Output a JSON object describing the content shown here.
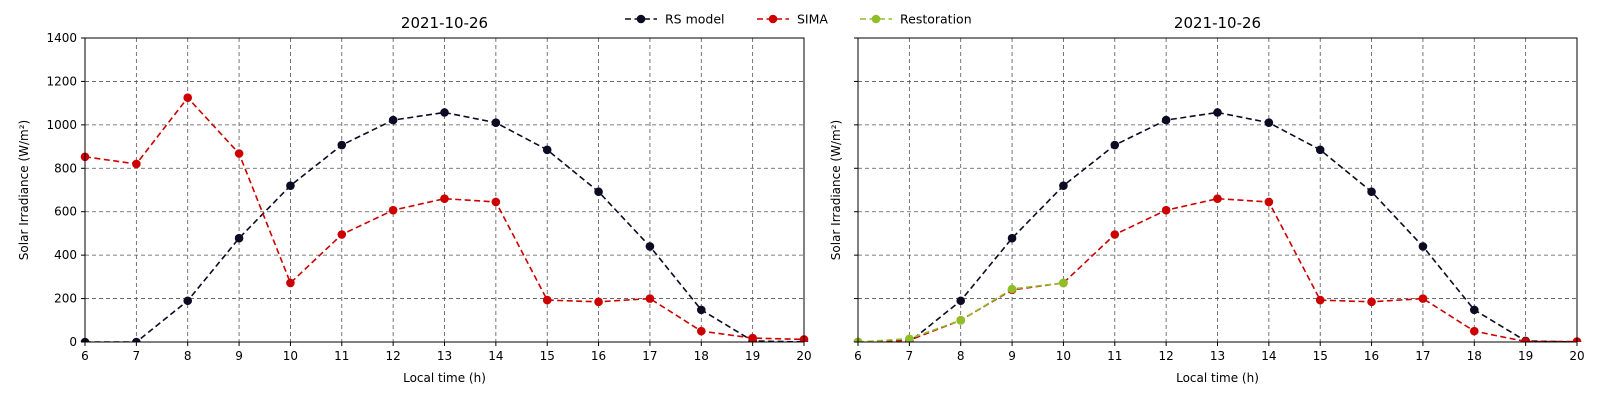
{
  "legend": {
    "placement": "top-center",
    "entries": [
      {
        "label": "RS model",
        "color": "#0b0b24"
      },
      {
        "label": "SIMA",
        "color": "#cc0000"
      },
      {
        "label": "Restoration",
        "color": "#8fbf26"
      }
    ]
  },
  "chart_data": [
    {
      "type": "line",
      "title": "2021-10-26",
      "xlabel": "Local time (h)",
      "ylabel": "Solar Irradiance (W/m²)",
      "xlim": [
        6,
        20
      ],
      "ylim": [
        0,
        1400
      ],
      "xticks": [
        6,
        7,
        8,
        9,
        10,
        11,
        12,
        13,
        14,
        15,
        16,
        17,
        18,
        19,
        20
      ],
      "yticks": [
        0,
        200,
        400,
        600,
        800,
        1000,
        1200,
        1400
      ],
      "grid": true,
      "series": [
        {
          "name": "RS model",
          "color": "#0b0b24",
          "x": [
            6,
            7,
            8,
            9,
            10,
            11,
            12,
            13,
            14,
            15,
            16,
            17,
            18,
            19,
            20
          ],
          "y": [
            0,
            0,
            190,
            478,
            720,
            907,
            1022,
            1057,
            1010,
            885,
            692,
            440,
            148,
            5,
            0
          ]
        },
        {
          "name": "SIMA",
          "color": "#cc0000",
          "x": [
            6,
            7,
            8,
            9,
            10,
            11,
            12,
            13,
            14,
            15,
            16,
            17,
            18,
            19,
            20
          ],
          "y": [
            853,
            820,
            1125,
            868,
            272,
            495,
            607,
            660,
            645,
            193,
            185,
            200,
            50,
            18,
            12
          ]
        }
      ]
    },
    {
      "type": "line",
      "title": "2021-10-26",
      "xlabel": "Local time (h)",
      "ylabel": "Solar Irradiance (W/m²)",
      "xlim": [
        6,
        20
      ],
      "ylim": [
        0,
        1400
      ],
      "xticks": [
        6,
        7,
        8,
        9,
        10,
        11,
        12,
        13,
        14,
        15,
        16,
        17,
        18,
        19,
        20
      ],
      "yticks": [
        0,
        200,
        400,
        600,
        800,
        1000,
        1200,
        1400
      ],
      "show_ytick_labels": false,
      "grid": true,
      "series": [
        {
          "name": "RS model",
          "color": "#0b0b24",
          "x": [
            6,
            7,
            8,
            9,
            10,
            11,
            12,
            13,
            14,
            15,
            16,
            17,
            18,
            19,
            20
          ],
          "y": [
            0,
            0,
            190,
            478,
            720,
            907,
            1022,
            1057,
            1010,
            885,
            692,
            440,
            148,
            5,
            0
          ]
        },
        {
          "name": "SIMA",
          "color": "#cc0000",
          "x": [
            6,
            7,
            8,
            9,
            10,
            11,
            12,
            13,
            14,
            15,
            16,
            17,
            18,
            19,
            20
          ],
          "y": [
            0,
            8,
            100,
            240,
            272,
            495,
            607,
            660,
            645,
            193,
            185,
            200,
            50,
            2,
            2
          ]
        },
        {
          "name": "Restoration",
          "color": "#8fbf26",
          "x": [
            6,
            7,
            8,
            9,
            10
          ],
          "y": [
            0,
            15,
            100,
            244,
            272
          ]
        }
      ]
    }
  ]
}
